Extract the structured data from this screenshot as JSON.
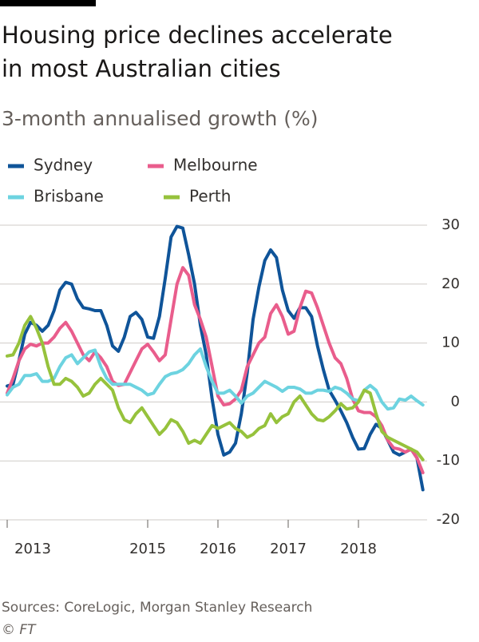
{
  "chart_data": {
    "type": "line",
    "title": [
      "Housing price declines accelerate",
      "in most Australian cities"
    ],
    "subtitle": "3-month annualised growth (%)",
    "source": "Sources: CoreLogic, Morgan Stanley Research",
    "credit": "© FT",
    "x": [
      2013,
      2013.083,
      2013.167,
      2013.25,
      2013.333,
      2013.417,
      2013.5,
      2013.583,
      2013.667,
      2013.75,
      2013.833,
      2013.917,
      2014,
      2014.083,
      2014.167,
      2014.25,
      2014.333,
      2014.417,
      2014.5,
      2014.583,
      2014.667,
      2014.75,
      2014.833,
      2014.917,
      2015,
      2015.083,
      2015.167,
      2015.25,
      2015.333,
      2015.417,
      2015.5,
      2015.583,
      2015.667,
      2015.75,
      2015.833,
      2015.917,
      2016,
      2016.083,
      2016.167,
      2016.25,
      2016.333,
      2016.417,
      2016.5,
      2016.583,
      2016.667,
      2016.75,
      2016.833,
      2016.917,
      2017,
      2017.083,
      2017.167,
      2017.25,
      2017.333,
      2017.417,
      2017.5,
      2017.583,
      2017.667,
      2017.75,
      2017.833,
      2017.917,
      2018,
      2018.083,
      2018.167,
      2018.25,
      2018.333,
      2018.417,
      2018.5,
      2018.583,
      2018.667,
      2018.75,
      2018.833,
      2018.917
    ],
    "series": [
      {
        "name": "Sydney",
        "color": "#0f5499",
        "values": [
          2.7,
          3,
          7,
          11.5,
          13.5,
          13,
          12,
          13,
          15.5,
          19,
          20.3,
          20,
          17.5,
          16,
          15.8,
          15.5,
          15.5,
          13,
          9.5,
          8.6,
          11,
          14.5,
          15.2,
          14,
          11,
          10.8,
          14.5,
          21,
          28,
          29.8,
          29.5,
          25,
          20,
          13,
          8,
          0.5,
          -5.5,
          -9,
          -8.5,
          -7,
          -2,
          5,
          14,
          19.5,
          24,
          25.8,
          24.5,
          19,
          15.5,
          14.2,
          16,
          16,
          14.5,
          9.5,
          5.5,
          2,
          0.3,
          -1.5,
          -3.5,
          -6,
          -8,
          -7.9,
          -5.5,
          -3.8,
          -4.5,
          -6.5,
          -8.5,
          -9,
          -8.5,
          -8,
          -9.5,
          -14.9
        ]
      },
      {
        "name": "Melbourne",
        "color": "#e95d8c",
        "values": [
          1.5,
          4,
          7,
          9,
          9.8,
          9.5,
          10,
          10,
          11,
          12.5,
          13.5,
          12,
          10,
          8,
          7,
          8.5,
          7.5,
          6,
          3.5,
          2.8,
          3,
          5,
          7,
          9,
          9.8,
          8.5,
          7,
          8,
          14,
          20,
          22.8,
          21.5,
          16.5,
          14,
          11,
          6,
          1,
          -0.5,
          -0.3,
          0.5,
          2,
          6,
          8,
          10,
          11,
          15,
          16.5,
          14.5,
          11.5,
          12,
          16,
          18.8,
          18.5,
          16,
          13,
          10,
          7.5,
          6.5,
          4,
          0.5,
          -1.5,
          -1.8,
          -1.8,
          -2.5,
          -4,
          -6.5,
          -7.8,
          -8,
          -8.5,
          -8,
          -9.5,
          -12
        ]
      },
      {
        "name": "Brisbane",
        "color": "#6dd3e0",
        "values": [
          1.2,
          2.5,
          3,
          4.5,
          4.5,
          4.8,
          3.5,
          3.5,
          4,
          6,
          7.5,
          8,
          6.5,
          7.5,
          8.5,
          8.8,
          6,
          4,
          3,
          3,
          3,
          3,
          2.5,
          2,
          1.2,
          1.5,
          3,
          4.3,
          4.8,
          5,
          5.5,
          6.5,
          8,
          9,
          6,
          3.5,
          1.5,
          1.5,
          2,
          1,
          -0.2,
          1,
          1.5,
          2.5,
          3.5,
          3,
          2.5,
          1.8,
          2.5,
          2.5,
          2.2,
          1.5,
          1.5,
          2,
          2,
          1.8,
          2.5,
          2.2,
          1.5,
          0.5,
          0.2,
          2,
          2.8,
          2,
          0,
          -1.2,
          -1,
          0.5,
          0.3,
          1,
          0.2,
          -0.5
        ]
      },
      {
        "name": "Perth",
        "color": "#96c23c",
        "values": [
          7.8,
          8,
          10,
          13,
          14.5,
          12.5,
          10,
          6,
          3,
          3,
          4,
          3.5,
          2.5,
          1,
          1.5,
          3,
          4,
          3,
          2,
          -1,
          -3,
          -3.5,
          -2,
          -1,
          -2.5,
          -4,
          -5.5,
          -4.5,
          -3,
          -3.5,
          -5,
          -7,
          -6.5,
          -7,
          -5.5,
          -4,
          -4.5,
          -4,
          -3.5,
          -4.5,
          -5,
          -6,
          -5.5,
          -4.5,
          -4,
          -2,
          -3.5,
          -2.5,
          -2,
          0,
          1,
          -0.5,
          -2,
          -3,
          -3.2,
          -2.5,
          -1.5,
          -0.3,
          -1.2,
          -1,
          0,
          2,
          1.5,
          -2,
          -5,
          -6,
          -6.5,
          -7,
          -7.5,
          -8,
          -8.5,
          -9.8
        ]
      }
    ],
    "xlim": [
      2013,
      2019
    ],
    "xticks": [
      2013,
      2015,
      2016,
      2017,
      2018
    ],
    "ylim": [
      -20,
      30
    ],
    "yticks": [
      30,
      20,
      10,
      0,
      -10,
      -20
    ],
    "grid": true
  }
}
